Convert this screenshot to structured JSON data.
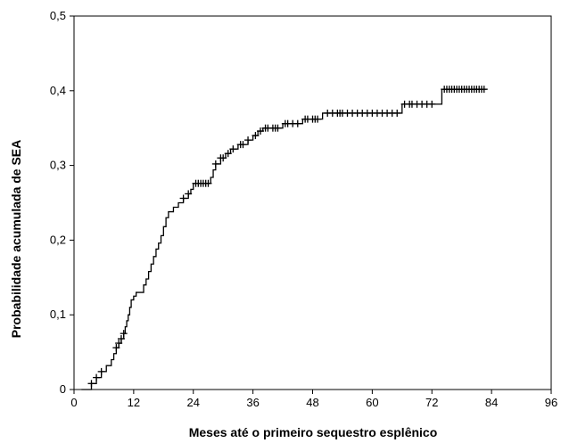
{
  "chart_data": {
    "type": "line",
    "title": "",
    "xlabel": "Meses até o primeiro sequestro esplênico",
    "ylabel": "Probabilidade acumulada de SEA",
    "xlim": [
      0,
      96
    ],
    "ylim": [
      0,
      0.5
    ],
    "x_ticks": [
      0,
      12,
      24,
      36,
      48,
      60,
      72,
      84,
      96
    ],
    "x_tick_labels": [
      "0",
      "12",
      "24",
      "36",
      "48",
      "60",
      "72",
      "84",
      "96"
    ],
    "y_ticks": [
      0,
      0.1,
      0.2,
      0.3,
      0.4,
      0.5
    ],
    "y_tick_labels": [
      "0",
      "0,1",
      "0,2",
      "0,3",
      "0,4",
      "0,5"
    ],
    "grid": false,
    "legend": "none",
    "line_color": "#000000",
    "series": [
      {
        "step_points": [
          [
            1.5,
            0.0
          ],
          [
            3.5,
            0.008
          ],
          [
            4.5,
            0.016
          ],
          [
            5.5,
            0.024
          ],
          [
            6.5,
            0.032
          ],
          [
            7.5,
            0.04
          ],
          [
            8.0,
            0.048
          ],
          [
            8.5,
            0.056
          ],
          [
            9.0,
            0.062
          ],
          [
            9.5,
            0.068
          ],
          [
            10.0,
            0.075
          ],
          [
            10.3,
            0.084
          ],
          [
            10.6,
            0.092
          ],
          [
            10.9,
            0.1
          ],
          [
            11.2,
            0.11
          ],
          [
            11.5,
            0.12
          ],
          [
            12.0,
            0.125
          ],
          [
            12.5,
            0.13
          ],
          [
            14.0,
            0.14
          ],
          [
            14.5,
            0.148
          ],
          [
            15.0,
            0.158
          ],
          [
            15.5,
            0.168
          ],
          [
            16.0,
            0.178
          ],
          [
            16.5,
            0.188
          ],
          [
            17.0,
            0.196
          ],
          [
            17.5,
            0.206
          ],
          [
            18.0,
            0.218
          ],
          [
            18.5,
            0.23
          ],
          [
            19.0,
            0.238
          ],
          [
            20.0,
            0.244
          ],
          [
            21.0,
            0.25
          ],
          [
            22.0,
            0.256
          ],
          [
            23.0,
            0.262
          ],
          [
            23.5,
            0.268
          ],
          [
            24.0,
            0.276
          ],
          [
            27.5,
            0.284
          ],
          [
            28.0,
            0.294
          ],
          [
            28.5,
            0.302
          ],
          [
            29.5,
            0.31
          ],
          [
            30.5,
            0.316
          ],
          [
            31.5,
            0.322
          ],
          [
            33.0,
            0.328
          ],
          [
            35.0,
            0.334
          ],
          [
            36.0,
            0.34
          ],
          [
            37.0,
            0.346
          ],
          [
            38.0,
            0.35
          ],
          [
            42.0,
            0.356
          ],
          [
            46.0,
            0.362
          ],
          [
            50.0,
            0.37
          ],
          [
            66.0,
            0.382
          ],
          [
            74.0,
            0.402
          ],
          [
            83.0,
            0.402
          ]
        ],
        "censor_x": [
          3.5,
          4.5,
          5.5,
          8.5,
          9.0,
          9.5,
          10.0,
          22.0,
          23.0,
          24.5,
          25.0,
          25.5,
          26.0,
          26.5,
          27.0,
          28.5,
          29.5,
          30.0,
          31.0,
          32.0,
          33.5,
          34.0,
          35.0,
          36.5,
          37.5,
          38.5,
          39.0,
          40.0,
          40.5,
          41.0,
          42.5,
          43.0,
          44.0,
          45.0,
          46.5,
          47.0,
          48.0,
          48.5,
          49.0,
          51.0,
          52.0,
          53.0,
          53.5,
          54.0,
          55.0,
          56.0,
          57.0,
          58.0,
          59.0,
          60.0,
          61.0,
          62.0,
          63.0,
          64.0,
          65.0,
          66.5,
          67.5,
          68.0,
          69.0,
          70.0,
          71.0,
          72.0,
          74.5,
          75.0,
          75.5,
          76.0,
          76.5,
          77.0,
          77.5,
          78.0,
          78.5,
          79.0,
          79.5,
          80.0,
          80.5,
          81.0,
          81.5,
          82.0,
          82.5
        ]
      }
    ]
  }
}
